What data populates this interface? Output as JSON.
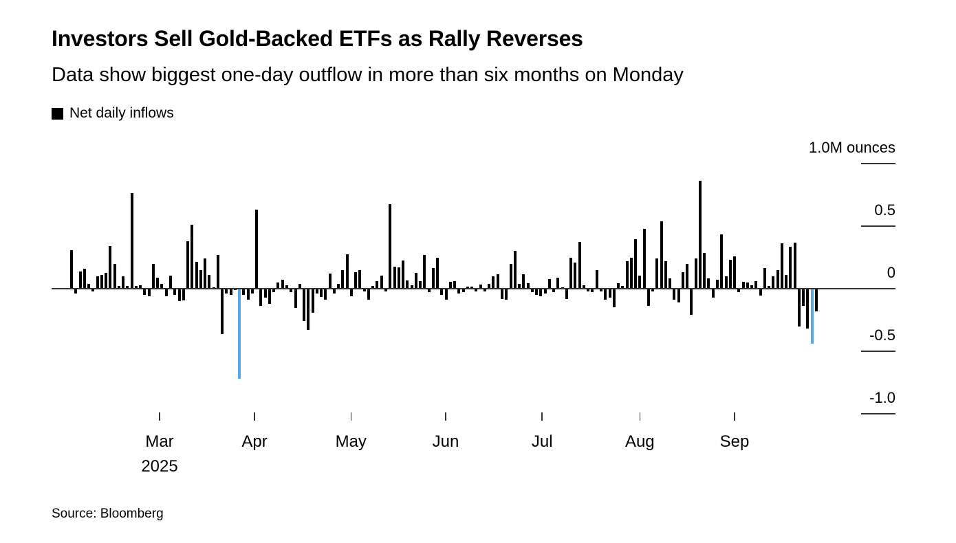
{
  "header": {
    "title": "Investors Sell Gold-Backed ETFs as Rally Reverses",
    "subtitle": "Data show biggest one-day outflow in more than six months on Monday"
  },
  "legend": {
    "label": "Net daily inflows"
  },
  "footer": {
    "source": "Source: Bloomberg"
  },
  "chart_data": {
    "type": "bar",
    "title": "Investors Sell Gold-Backed ETFs as Rally Reverses",
    "subtitle": "Data show biggest one-day outflow in more than six months on Monday",
    "series_name": "Net daily inflows",
    "unit": "M ounces",
    "ylim": [
      -1.0,
      1.0
    ],
    "grid": "off",
    "legend_position": "top-left",
    "y_axis": {
      "ticks": [
        {
          "value": 1.0,
          "label": "1.0M ounces"
        },
        {
          "value": 0.5,
          "label": "0.5"
        },
        {
          "value": 0,
          "label": "0"
        },
        {
          "value": -0.5,
          "label": "-0.5"
        },
        {
          "value": -1.0,
          "label": "-1.0"
        }
      ]
    },
    "x_axis": {
      "ticks": [
        {
          "label": "Mar",
          "index": 20.45,
          "year": "2025"
        },
        {
          "label": "Apr",
          "index": 42.5
        },
        {
          "label": "May",
          "index": 64.9
        },
        {
          "label": "Jun",
          "index": 86.9
        },
        {
          "label": "Jul",
          "index": 109.3
        },
        {
          "label": "Aug",
          "index": 132.0
        },
        {
          "label": "Sep",
          "index": 154.0
        }
      ]
    },
    "values": [
      0.31,
      -0.04,
      0.14,
      0.16,
      0.04,
      -0.02,
      0.1,
      0.11,
      0.125,
      0.34,
      0.2,
      0.02,
      0.1,
      0.02,
      0.765,
      0.02,
      0.03,
      -0.05,
      -0.06,
      0.2,
      0.09,
      0.04,
      -0.06,
      0.105,
      -0.05,
      -0.1,
      -0.095,
      0.38,
      0.51,
      0.215,
      0.15,
      0.24,
      0.11,
      0.01,
      0.27,
      -0.36,
      -0.04,
      -0.05,
      -0.01,
      -0.72,
      -0.05,
      -0.09,
      -0.04,
      0.63,
      -0.14,
      -0.07,
      -0.12,
      -0.03,
      0.05,
      0.07,
      0.03,
      -0.03,
      -0.155,
      0.04,
      -0.26,
      -0.33,
      -0.19,
      -0.04,
      -0.065,
      -0.09,
      0.12,
      -0.04,
      0.04,
      0.15,
      0.275,
      -0.06,
      0.13,
      0.15,
      -0.02,
      -0.09,
      0.02,
      0.06,
      0.105,
      -0.02,
      0.675,
      0.175,
      0.17,
      0.225,
      0.065,
      0.03,
      0.125,
      0.06,
      0.27,
      -0.03,
      0.165,
      0.25,
      -0.05,
      -0.09,
      0.055,
      0.06,
      -0.04,
      -0.03,
      0.015,
      0.015,
      -0.02,
      0.035,
      -0.02,
      0.04,
      0.1,
      0.115,
      -0.08,
      -0.09,
      0.2,
      0.3,
      0.04,
      0.115,
      0.045,
      -0.03,
      -0.05,
      -0.06,
      -0.04,
      0.075,
      -0.03,
      0.09,
      0.01,
      -0.08,
      0.25,
      0.21,
      0.375,
      0.03,
      -0.02,
      -0.03,
      0.15,
      -0.02,
      -0.09,
      -0.07,
      -0.15,
      0.045,
      0.02,
      0.22,
      0.25,
      0.395,
      0.105,
      0.48,
      -0.14,
      -0.02,
      0.24,
      0.54,
      0.22,
      0.08,
      -0.09,
      -0.11,
      0.13,
      0.2,
      -0.21,
      0.24,
      0.86,
      0.285,
      0.08,
      -0.07,
      0.07,
      0.435,
      0.1,
      0.23,
      0.26,
      -0.03,
      0.055,
      0.05,
      0.03,
      0.06,
      -0.055,
      0.165,
      0.02,
      0.1,
      0.15,
      0.36,
      0.11,
      0.335,
      0.37,
      -0.3,
      -0.14,
      -0.32,
      -0.44,
      -0.18
    ],
    "highlight_indices": [
      39,
      172
    ],
    "colors": {
      "bar": "#000000",
      "highlight": "#57a9e8",
      "axis": "#333333"
    }
  }
}
